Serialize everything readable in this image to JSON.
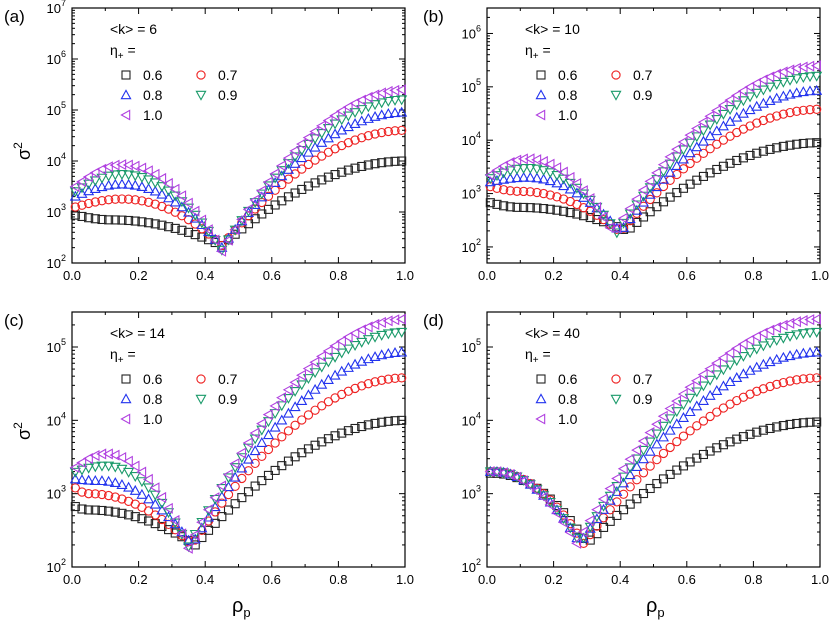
{
  "figure": {
    "xlabel_main": "ρ",
    "xlabel_sub": "p",
    "ylabel_main": "σ",
    "ylabel_sup": "2",
    "legend_symbol_main": "η",
    "legend_symbol_sub": "+",
    "legend_symbol_tail": " =",
    "x_ticks": [
      "0.0",
      "0.2",
      "0.4",
      "0.6",
      "0.8",
      "1.0"
    ],
    "y_tick_base": "10"
  },
  "series_styles": [
    {
      "eta": "0.6",
      "marker": "square",
      "color": "#222222"
    },
    {
      "eta": "0.7",
      "marker": "circle",
      "color": "#ee2222"
    },
    {
      "eta": "0.8",
      "marker": "triangle-up",
      "color": "#2233ee"
    },
    {
      "eta": "0.9",
      "marker": "triangle-down",
      "color": "#1a9a6a"
    },
    {
      "eta": "1.0",
      "marker": "triangle-left",
      "color": "#b040e0"
    }
  ],
  "chart_data": [
    {
      "type": "scatter",
      "panel": "(a)",
      "title": "<k> = 6",
      "xlabel": "ρp",
      "ylabel": "σ2",
      "xlim": [
        0,
        1.0
      ],
      "ylim": [
        100,
        10000000
      ],
      "yscale": "log",
      "y_exponents": [
        2,
        3,
        4,
        5,
        6,
        7
      ],
      "series": [
        {
          "name": "0.6",
          "min_x": 0.45,
          "min_y": 220,
          "left_y": 900,
          "peak_y": 700,
          "peak_x": 0.12,
          "right_y": 10000
        },
        {
          "name": "0.7",
          "min_x": 0.45,
          "min_y": 220,
          "left_y": 1200,
          "peak_y": 1800,
          "peak_x": 0.15,
          "right_y": 40000
        },
        {
          "name": "0.8",
          "min_x": 0.45,
          "min_y": 200,
          "left_y": 1900,
          "peak_y": 3500,
          "peak_x": 0.15,
          "right_y": 90000
        },
        {
          "name": "0.9",
          "min_x": 0.45,
          "min_y": 180,
          "left_y": 2300,
          "peak_y": 5500,
          "peak_x": 0.15,
          "right_y": 160000
        },
        {
          "name": "1.0",
          "min_x": 0.45,
          "min_y": 170,
          "left_y": 2800,
          "peak_y": 8500,
          "peak_x": 0.15,
          "right_y": 250000
        }
      ]
    },
    {
      "type": "scatter",
      "panel": "(b)",
      "title": "<k> = 10",
      "xlabel": "ρp",
      "ylabel": "σ2",
      "xlim": [
        0,
        1.0
      ],
      "ylim": [
        50,
        3000000
      ],
      "yscale": "log",
      "y_exponents": [
        2,
        3,
        4,
        5,
        6
      ],
      "series": [
        {
          "name": "0.6",
          "min_x": 0.42,
          "min_y": 200,
          "left_y": 700,
          "peak_y": 550,
          "peak_x": 0.1,
          "right_y": 9000
        },
        {
          "name": "0.7",
          "min_x": 0.4,
          "min_y": 190,
          "left_y": 1400,
          "peak_y": 1100,
          "peak_x": 0.1,
          "right_y": 38000
        },
        {
          "name": "0.8",
          "min_x": 0.4,
          "min_y": 190,
          "left_y": 1600,
          "peak_y": 2000,
          "peak_x": 0.12,
          "right_y": 85000
        },
        {
          "name": "0.9",
          "min_x": 0.39,
          "min_y": 185,
          "left_y": 1800,
          "peak_y": 3000,
          "peak_x": 0.12,
          "right_y": 160000
        },
        {
          "name": "1.0",
          "min_x": 0.38,
          "min_y": 180,
          "left_y": 2000,
          "peak_y": 4500,
          "peak_x": 0.12,
          "right_y": 250000
        }
      ]
    },
    {
      "type": "scatter",
      "panel": "(c)",
      "title": "<k> = 14",
      "xlabel": "ρp",
      "ylabel": "σ2",
      "xlim": [
        0,
        1.0
      ],
      "ylim": [
        100,
        300000
      ],
      "yscale": "log",
      "y_exponents": [
        2,
        3,
        4,
        5
      ],
      "series": [
        {
          "name": "0.6",
          "min_x": 0.37,
          "min_y": 200,
          "left_y": 700,
          "peak_y": 600,
          "peak_x": 0.05,
          "right_y": 10000
        },
        {
          "name": "0.7",
          "min_x": 0.36,
          "min_y": 200,
          "left_y": 1300,
          "peak_y": 1000,
          "peak_x": 0.05,
          "right_y": 38000
        },
        {
          "name": "0.8",
          "min_x": 0.36,
          "min_y": 200,
          "left_y": 1600,
          "peak_y": 1500,
          "peak_x": 0.08,
          "right_y": 85000
        },
        {
          "name": "0.9",
          "min_x": 0.35,
          "min_y": 190,
          "left_y": 1900,
          "peak_y": 2400,
          "peak_x": 0.1,
          "right_y": 160000
        },
        {
          "name": "1.0",
          "min_x": 0.35,
          "min_y": 180,
          "left_y": 2100,
          "peak_y": 3500,
          "peak_x": 0.1,
          "right_y": 240000
        }
      ]
    },
    {
      "type": "scatter",
      "panel": "(d)",
      "title": "<k> = 40",
      "xlabel": "ρp",
      "ylabel": "σ2",
      "xlim": [
        0,
        1.0
      ],
      "ylim": [
        100,
        300000
      ],
      "yscale": "log",
      "y_exponents": [
        2,
        3,
        4,
        5
      ],
      "series": [
        {
          "name": "0.6",
          "min_x": 0.3,
          "min_y": 210,
          "left_y": 1900,
          "peak_y": 1900,
          "peak_x": 0.02,
          "right_y": 9500
        },
        {
          "name": "0.7",
          "min_x": 0.29,
          "min_y": 210,
          "left_y": 2000,
          "peak_y": 2000,
          "peak_x": 0.02,
          "right_y": 38000
        },
        {
          "name": "0.8",
          "min_x": 0.28,
          "min_y": 210,
          "left_y": 2000,
          "peak_y": 2000,
          "peak_x": 0.02,
          "right_y": 85000
        },
        {
          "name": "0.9",
          "min_x": 0.28,
          "min_y": 210,
          "left_y": 2000,
          "peak_y": 2000,
          "peak_x": 0.02,
          "right_y": 160000
        },
        {
          "name": "1.0",
          "min_x": 0.27,
          "min_y": 210,
          "left_y": 2000,
          "peak_y": 2000,
          "peak_x": 0.02,
          "right_y": 240000
        }
      ]
    }
  ]
}
